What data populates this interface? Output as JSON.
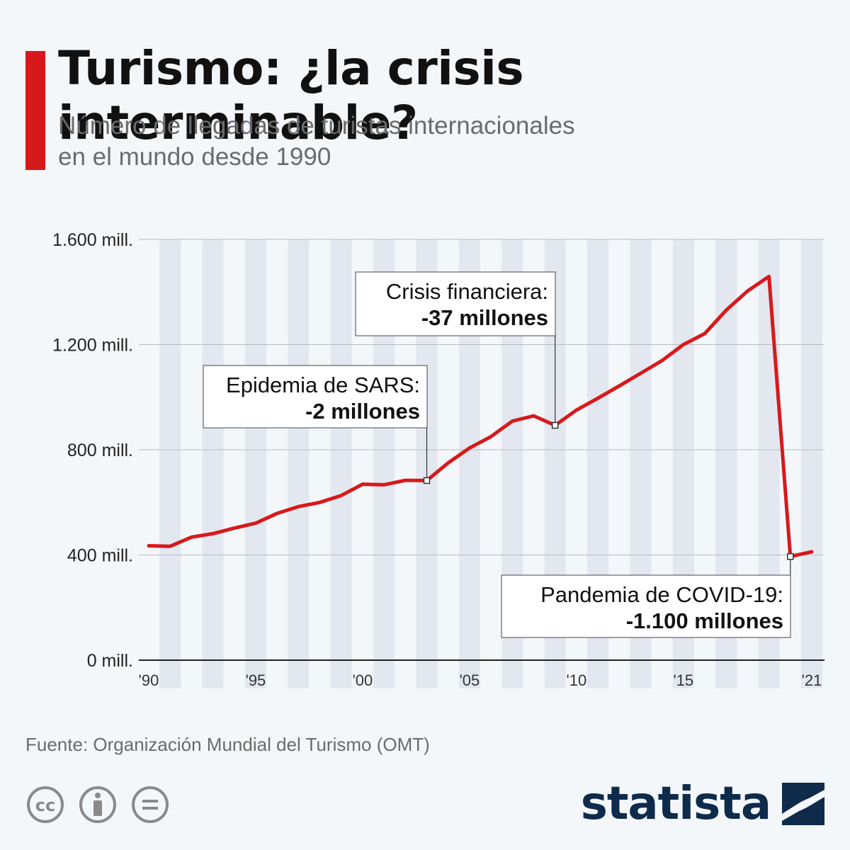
{
  "header": {
    "title": "Turismo: ¿la crisis interminable?",
    "subtitle_line1": "Número de llegadas de turistas internacionales",
    "subtitle_line2": "en el mundo desde 1990"
  },
  "chart_data": {
    "type": "line",
    "x": [
      1990,
      1991,
      1992,
      1993,
      1994,
      1995,
      1996,
      1997,
      1998,
      1999,
      2000,
      2001,
      2002,
      2003,
      2004,
      2005,
      2006,
      2007,
      2008,
      2009,
      2010,
      2011,
      2012,
      2013,
      2014,
      2015,
      2016,
      2017,
      2018,
      2019,
      2020,
      2021
    ],
    "series": [
      {
        "values": [
          435,
          433,
          468,
          481,
          502,
          521,
          558,
          584,
          600,
          626,
          669,
          667,
          684,
          683,
          750,
          807,
          850,
          909,
          929,
          893,
          951,
          996,
          1043,
          1091,
          1139,
          1200,
          1242,
          1331,
          1404,
          1459,
          394,
          412
        ]
      }
    ],
    "ylim": [
      0,
      1600
    ],
    "y_ticks": [
      0,
      400,
      800,
      1200,
      1600
    ],
    "y_tick_labels": [
      "0 mill.",
      "400 mill.",
      "800 mill.",
      "1.200 mill.",
      "1.600 mill."
    ],
    "x_ticks": [
      1990,
      1995,
      2000,
      2005,
      2010,
      2015,
      2021
    ],
    "x_tick_labels": [
      "'90",
      "'95",
      "'00",
      "'05",
      "'10",
      "'15",
      "'21"
    ],
    "line_color": "#d7191c",
    "grid": true,
    "annotations": [
      {
        "x": 2003,
        "line1": "Epidemia de SARS:",
        "line2": "-2 millones"
      },
      {
        "x": 2009,
        "line1": "Crisis financiera:",
        "line2": "-37 millones"
      },
      {
        "x": 2020,
        "line1": "Pandemia de COVID-19:",
        "line2": "-1.100 millones"
      }
    ]
  },
  "footer": {
    "source": "Fuente: Organización Mundial del Turismo (OMT)",
    "brand": "statista",
    "license_icons": [
      "cc-icon",
      "attribution-icon",
      "no-derivatives-icon"
    ]
  }
}
